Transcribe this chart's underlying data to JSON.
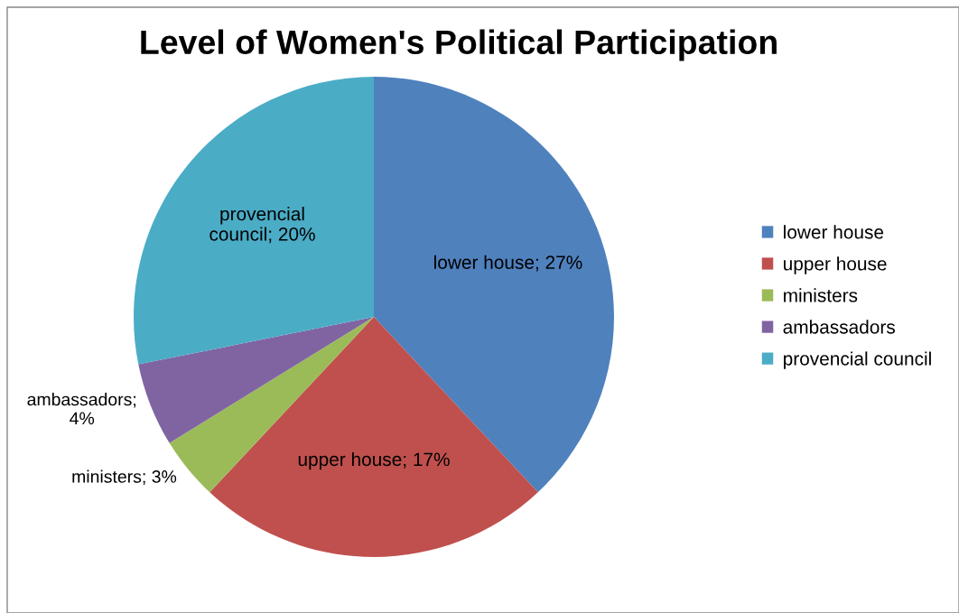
{
  "chart_data": {
    "type": "pie",
    "title": "Level of Women's Political Participation",
    "categories": [
      "lower house",
      "upper house",
      "ministers",
      "ambassadors",
      "provencial council"
    ],
    "values": [
      27,
      17,
      3,
      4,
      20
    ],
    "colors": [
      "#4f81bd",
      "#c0504d",
      "#9bbb59",
      "#8064a2",
      "#4bacc6"
    ],
    "value_labels": [
      "lower house; 27%",
      "upper house; 17%",
      "ministers; 3%",
      "ambassadors;\n4%",
      "provencial\ncouncil; 20%"
    ],
    "legend": "right"
  }
}
